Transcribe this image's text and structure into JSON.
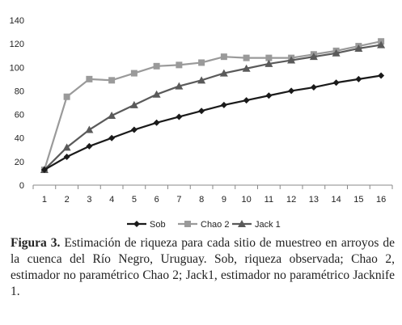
{
  "chart_data": {
    "type": "line",
    "x": [
      1,
      2,
      3,
      4,
      5,
      6,
      7,
      8,
      9,
      10,
      11,
      12,
      13,
      14,
      15,
      16
    ],
    "series": [
      {
        "name": "Sob",
        "color": "#1a1a1a",
        "marker": "diamond",
        "values": [
          13,
          24,
          33,
          40,
          47,
          53,
          58,
          63,
          68,
          72,
          76,
          80,
          83,
          87,
          90,
          93
        ]
      },
      {
        "name": "Chao 2",
        "color": "#9a9a9a",
        "marker": "square",
        "values": [
          13,
          75,
          90,
          89,
          95,
          101,
          102,
          104,
          109,
          108,
          108,
          108,
          111,
          114,
          118,
          122
        ]
      },
      {
        "name": "Jack 1",
        "color": "#5a5a5a",
        "marker": "triangle",
        "values": [
          13,
          32,
          47,
          59,
          68,
          77,
          84,
          89,
          95,
          99,
          103,
          106,
          109,
          112,
          116,
          119
        ]
      }
    ],
    "yticks": [
      0,
      20,
      40,
      60,
      80,
      100,
      120,
      140
    ],
    "ylim": [
      0,
      140
    ],
    "grid": false,
    "legend_position": "bottom"
  },
  "caption": {
    "figure_label": "Figura 3.",
    "text": " Estimación de riqueza para cada sitio de muestreo en arroyos de la cuenca del Río Negro, Uruguay. Sob, riqueza observada; Chao 2, estimador no paramétrico Chao 2; Jack1, estimador no paramétrico Jacknife 1."
  }
}
